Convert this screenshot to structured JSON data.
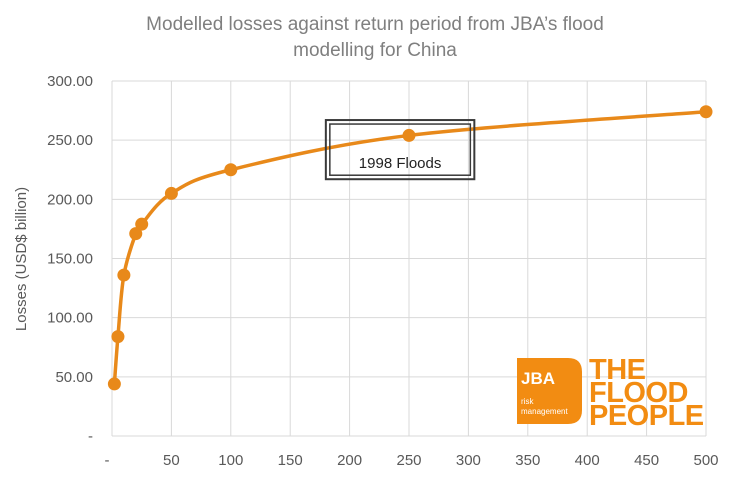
{
  "chart_data": {
    "type": "line",
    "title_lines": [
      "Modelled losses against return period from JBA’s flood",
      "modelling for China"
    ],
    "xlabel": "",
    "ylabel": "Losses (USD$ billion)",
    "x_ticks": [
      "-",
      "50",
      "100",
      "150",
      "200",
      "250",
      "300",
      "350",
      "400",
      "450",
      "500"
    ],
    "y_ticks": [
      "-",
      "50.00",
      "100.00",
      "150.00",
      "200.00",
      "250.00",
      "300.00"
    ],
    "xlim": [
      0,
      500
    ],
    "ylim": [
      0,
      300
    ],
    "grid": "both",
    "series": [
      {
        "color": "#e8891a",
        "x": [
          2,
          5,
          10,
          20,
          25,
          50,
          100,
          250,
          500
        ],
        "y": [
          44,
          84,
          136,
          171,
          179,
          205,
          225,
          254,
          274
        ]
      }
    ],
    "annotation": {
      "text": "1998 Floods",
      "x_range": [
        180,
        305
      ],
      "y_range": [
        217,
        267
      ]
    }
  },
  "logo": {
    "jba": "JBA",
    "sub1": "risk",
    "sub2": "management",
    "line1": "THE",
    "line2": "FLOOD",
    "line3": "PEOPLE",
    "color": "#f28c12"
  }
}
